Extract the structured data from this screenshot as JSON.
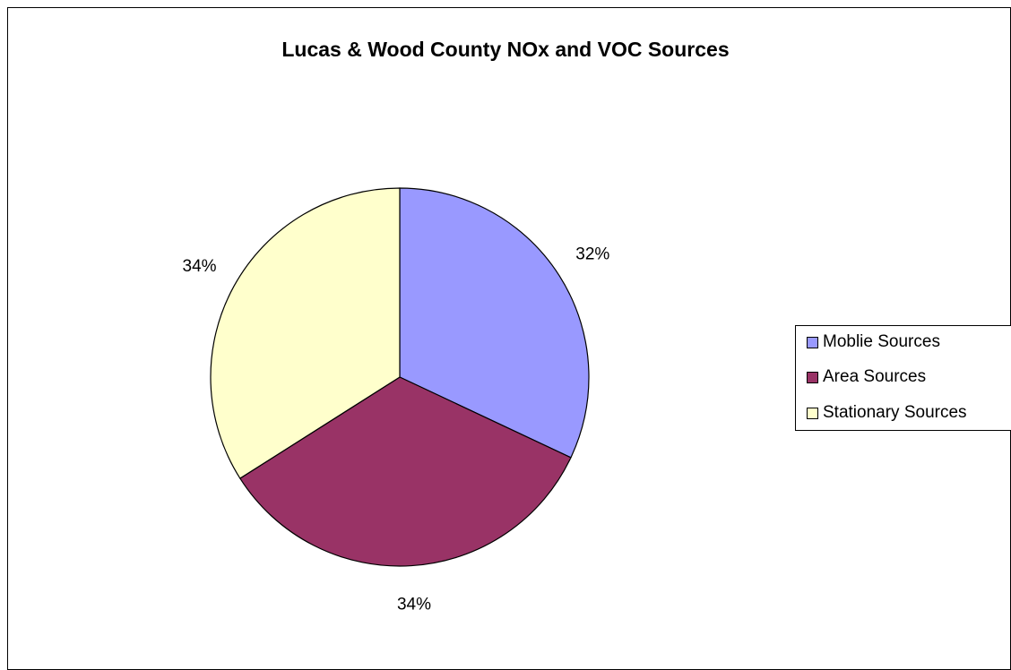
{
  "chart_data": {
    "type": "pie",
    "title": "Lucas & Wood County NOx and VOC Sources",
    "slices": [
      {
        "label": "Moblie Sources",
        "value": 32,
        "display": "32%",
        "color": "#9999FF"
      },
      {
        "label": "Area Sources",
        "value": 34,
        "display": "34%",
        "color": "#993366"
      },
      {
        "label": "Stationary Sources",
        "value": 34,
        "display": "34%",
        "color": "#FFFFCC"
      }
    ],
    "legend_position": "right"
  }
}
